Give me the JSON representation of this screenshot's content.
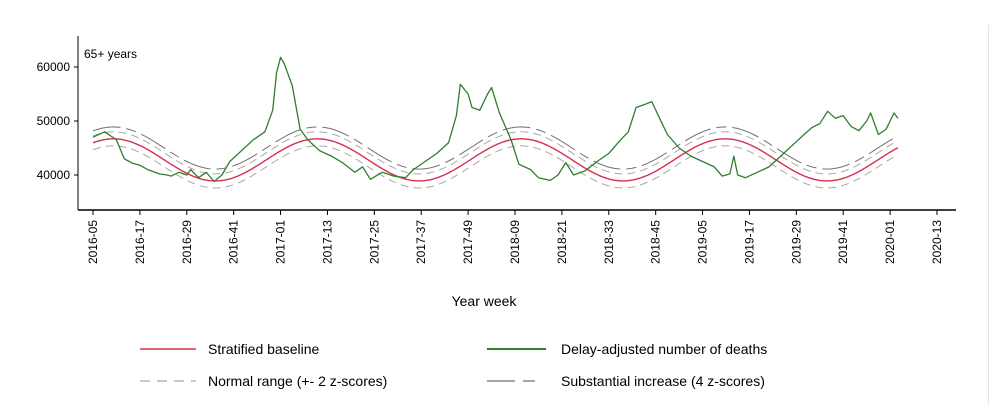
{
  "chart_data": {
    "type": "line",
    "panel_label": "65+ years",
    "xlabel": "Year week",
    "ylabel": "",
    "ylim": [
      34000,
      64000
    ],
    "x_tick_labels": [
      "2016-05",
      "2016-17",
      "2016-29",
      "2016-41",
      "2017-01",
      "2017-13",
      "2017-25",
      "2017-37",
      "2017-49",
      "2018-09",
      "2018-21",
      "2018-33",
      "2018-45",
      "2019-05",
      "2019-17",
      "2019-29",
      "2019-41",
      "2020-01",
      "2020-13"
    ],
    "x_tick_index": [
      0,
      12,
      24,
      36,
      48,
      60,
      72,
      84,
      96,
      108,
      120,
      132,
      144,
      156,
      168,
      180,
      192,
      204,
      216
    ],
    "y_ticks": [
      40000,
      50000,
      60000
    ],
    "y_tick_labels": [
      "40000",
      "50000",
      "60000"
    ],
    "baseline": {
      "amplitude": 3900,
      "mean": 42800,
      "period": 52.18,
      "phase": 5.2
    },
    "deaths": {
      "name": "Delay-adjusted number of deaths",
      "keys": [
        [
          0,
          47000
        ],
        [
          3,
          48000
        ],
        [
          6,
          46500
        ],
        [
          8,
          43000
        ],
        [
          10,
          42200
        ],
        [
          12,
          41800
        ],
        [
          14,
          41000
        ],
        [
          17,
          40200
        ],
        [
          19,
          40000
        ],
        [
          20,
          39800
        ],
        [
          22,
          40500
        ],
        [
          24,
          40000
        ],
        [
          25,
          41000
        ],
        [
          27,
          39500
        ],
        [
          29,
          40500
        ],
        [
          31,
          38800
        ],
        [
          33,
          40000
        ],
        [
          35,
          42500
        ],
        [
          38,
          44500
        ],
        [
          41,
          46500
        ],
        [
          44,
          48000
        ],
        [
          46,
          52000
        ],
        [
          47,
          59000
        ],
        [
          48,
          61800
        ],
        [
          49,
          60500
        ],
        [
          51,
          56500
        ],
        [
          53,
          48500
        ],
        [
          55,
          46500
        ],
        [
          58,
          44500
        ],
        [
          61,
          43500
        ],
        [
          64,
          42200
        ],
        [
          67,
          40500
        ],
        [
          69,
          41500
        ],
        [
          71,
          39200
        ],
        [
          74,
          40500
        ],
        [
          77,
          39800
        ],
        [
          80,
          39500
        ],
        [
          82,
          41000
        ],
        [
          85,
          42500
        ],
        [
          88,
          44000
        ],
        [
          91,
          46000
        ],
        [
          93,
          51000
        ],
        [
          94,
          56800
        ],
        [
          96,
          55000
        ],
        [
          97,
          52500
        ],
        [
          99,
          52000
        ],
        [
          101,
          55000
        ],
        [
          102,
          56200
        ],
        [
          104,
          51500
        ],
        [
          107,
          46500
        ],
        [
          109,
          42000
        ],
        [
          112,
          41000
        ],
        [
          114,
          39500
        ],
        [
          117,
          39000
        ],
        [
          119,
          40000
        ],
        [
          121,
          42300
        ],
        [
          123,
          40000
        ],
        [
          126,
          40800
        ],
        [
          129,
          42500
        ],
        [
          132,
          44000
        ],
        [
          135,
          46500
        ],
        [
          137,
          48000
        ],
        [
          139,
          52500
        ],
        [
          141,
          53000
        ],
        [
          143,
          53600
        ],
        [
          145,
          50500
        ],
        [
          147,
          47500
        ],
        [
          150,
          45000
        ],
        [
          153,
          43500
        ],
        [
          156,
          42500
        ],
        [
          159,
          41500
        ],
        [
          161,
          39800
        ],
        [
          163,
          40200
        ],
        [
          164,
          43500
        ],
        [
          165,
          40000
        ],
        [
          167,
          39500
        ],
        [
          170,
          40500
        ],
        [
          173,
          41500
        ],
        [
          176,
          43500
        ],
        [
          179,
          45500
        ],
        [
          182,
          47500
        ],
        [
          184,
          48800
        ],
        [
          186,
          49500
        ],
        [
          188,
          51800
        ],
        [
          190,
          50500
        ],
        [
          192,
          51000
        ],
        [
          194,
          49000
        ],
        [
          196,
          48200
        ],
        [
          198,
          50000
        ],
        [
          199,
          51500
        ],
        [
          200,
          49500
        ],
        [
          201,
          47500
        ],
        [
          203,
          48500
        ],
        [
          205,
          51500
        ],
        [
          206,
          50500
        ]
      ]
    },
    "legend": {
      "baseline": "Stratified baseline",
      "deaths": "Delay-adjusted number of deaths",
      "normal": "Normal range (+- 2 z-scores)",
      "substantial": "Substantial increase (4 z-scores)"
    },
    "colors": {
      "baseline": "#d6304e",
      "deaths": "#2f7d2f",
      "normal": "#a8a8a8",
      "substantial": "#707070",
      "axis": "#000000"
    },
    "z_band": {
      "normal_offset": 1300,
      "substantial_offset": 2200
    }
  }
}
